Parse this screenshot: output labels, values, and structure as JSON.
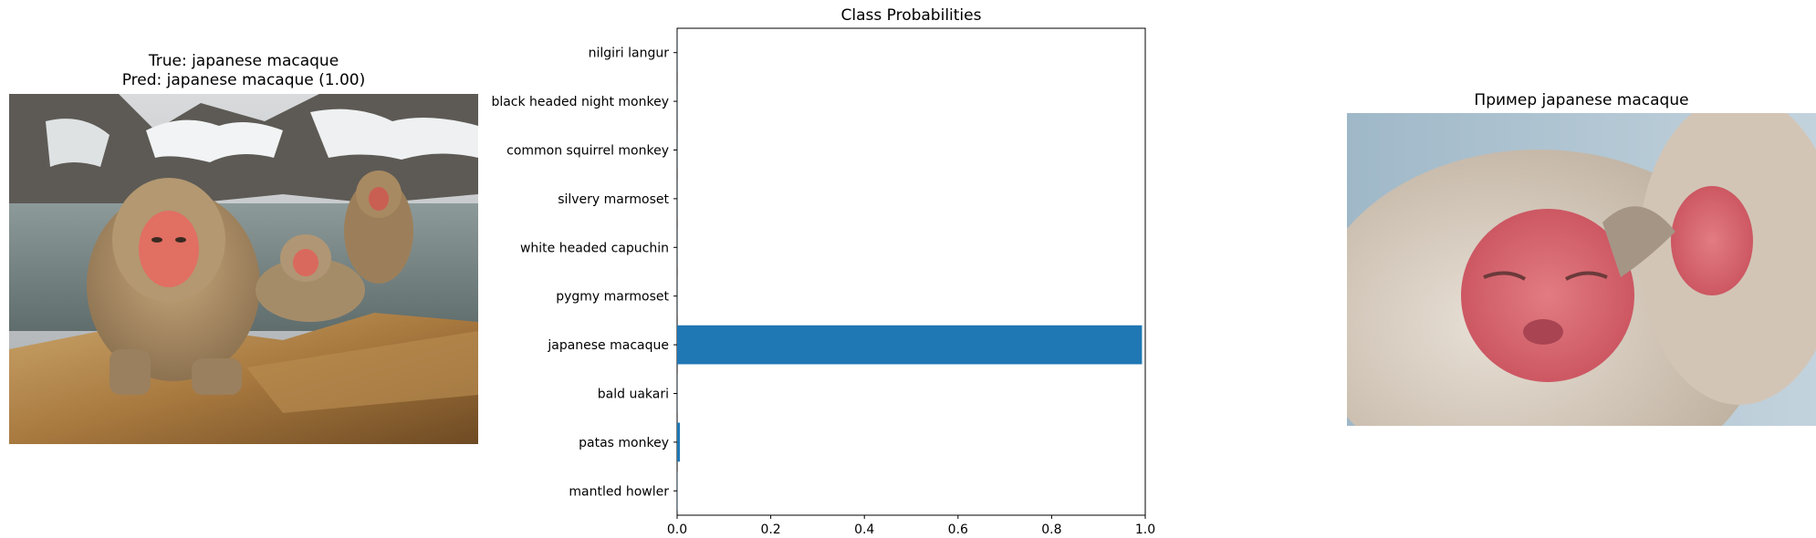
{
  "left_panel": {
    "title_line1": "True: japanese macaque",
    "title_line2": "Pred: japanese macaque (1.00)",
    "image": "photo of japanese macaques in hot spring"
  },
  "right_panel": {
    "title": "Пример japanese macaque",
    "image": "close-up photo of two japanese macaques grooming"
  },
  "chart_data": {
    "type": "bar",
    "orientation": "horizontal",
    "title": "Class Probabilities",
    "xlabel": "",
    "ylabel": "",
    "categories": [
      "mantled howler",
      "patas monkey",
      "bald uakari",
      "japanese macaque",
      "pygmy marmoset",
      "white headed capuchin",
      "silvery marmoset",
      "common squirrel monkey",
      "black headed night monkey",
      "nilgiri langur"
    ],
    "values": [
      0.0005,
      0.006,
      0.0003,
      0.993,
      0.0002,
      0.0002,
      0.0002,
      0.0002,
      0.0002,
      0.0002
    ],
    "xlim": [
      0.0,
      1.0
    ],
    "xticks": [
      "0.0",
      "0.2",
      "0.4",
      "0.6",
      "0.8",
      "1.0"
    ],
    "bar_color": "#1f77b4",
    "grid": false
  }
}
